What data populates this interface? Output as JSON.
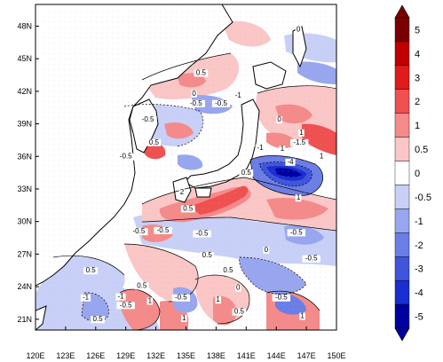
{
  "map": {
    "x_ticks": [
      "120E",
      "123E",
      "126E",
      "129E",
      "132E",
      "135E",
      "138E",
      "141E",
      "144E",
      "147E",
      "150E"
    ],
    "y_ticks": [
      "48N",
      "45N",
      "42N",
      "39N",
      "36N",
      "33N",
      "30N",
      "27N",
      "24N",
      "21N"
    ],
    "contour_labels": [
      {
        "text": "0",
        "lon": 146.2,
        "lat": 47.5
      },
      {
        "text": "0.5",
        "lon": 136.5,
        "lat": 43.5
      },
      {
        "text": "0",
        "lon": 135.8,
        "lat": 41.6
      },
      {
        "text": "-0.5",
        "lon": 131.2,
        "lat": 39.2
      },
      {
        "text": "0.5",
        "lon": 131.8,
        "lat": 37.1
      },
      {
        "text": "-0.5",
        "lon": 129.0,
        "lat": 35.8
      },
      {
        "text": "-0.5",
        "lon": 136.0,
        "lat": 40.7
      },
      {
        "text": "-0.5",
        "lon": 138.5,
        "lat": 40.7
      },
      {
        "text": "-1",
        "lon": 140.2,
        "lat": 41.4
      },
      {
        "text": "0",
        "lon": 144.3,
        "lat": 39.2
      },
      {
        "text": "1",
        "lon": 146.5,
        "lat": 38.0
      },
      {
        "text": "1",
        "lon": 144.6,
        "lat": 36.5
      },
      {
        "text": "-1.5",
        "lon": 146.3,
        "lat": 37.1
      },
      {
        "text": "-1",
        "lon": 142.4,
        "lat": 36.6
      },
      {
        "text": "-4",
        "lon": 145.4,
        "lat": 35.3
      },
      {
        "text": "0.5",
        "lon": 141.0,
        "lat": 34.3
      },
      {
        "text": "1",
        "lon": 148.5,
        "lat": 35.8
      },
      {
        "text": "2",
        "lon": 134.6,
        "lat": 32.5
      },
      {
        "text": "1",
        "lon": 146.2,
        "lat": 32.0
      },
      {
        "text": "0.5",
        "lon": 135.2,
        "lat": 31.0
      },
      {
        "text": "-0.5",
        "lon": 130.3,
        "lat": 28.9
      },
      {
        "text": "-0.5",
        "lon": 132.7,
        "lat": 29.0
      },
      {
        "text": "-0.5",
        "lon": 136.6,
        "lat": 28.7
      },
      {
        "text": "-0.5",
        "lon": 146.0,
        "lat": 28.8
      },
      {
        "text": "0",
        "lon": 143.0,
        "lat": 27.2
      },
      {
        "text": "0.5",
        "lon": 137.1,
        "lat": 26.7
      },
      {
        "text": "-0.5",
        "lon": 147.5,
        "lat": 26.4
      },
      {
        "text": "0.5",
        "lon": 125.5,
        "lat": 25.3
      },
      {
        "text": "0.5",
        "lon": 139.2,
        "lat": 25.3
      },
      {
        "text": "0.5",
        "lon": 130.6,
        "lat": 23.9
      },
      {
        "text": "0",
        "lon": 140.2,
        "lat": 23.7
      },
      {
        "text": "-1",
        "lon": 125.0,
        "lat": 22.8
      },
      {
        "text": "-1",
        "lon": 128.5,
        "lat": 22.9
      },
      {
        "text": "-0.5",
        "lon": 129.0,
        "lat": 22.1
      },
      {
        "text": "1",
        "lon": 131.4,
        "lat": 22.5
      },
      {
        "text": "-0.5",
        "lon": 134.5,
        "lat": 22.8
      },
      {
        "text": "1",
        "lon": 138.2,
        "lat": 22.6
      },
      {
        "text": "-0.5",
        "lon": 144.5,
        "lat": 22.8
      },
      {
        "text": "0.5",
        "lon": 126.2,
        "lat": 20.8
      },
      {
        "text": "1",
        "lon": 134.8,
        "lat": 20.9
      },
      {
        "text": "0.5",
        "lon": 140.3,
        "lat": 21.5
      },
      {
        "text": "1",
        "lon": 146.6,
        "lat": 21.1
      }
    ]
  },
  "colorbar": {
    "labels": [
      "5",
      "4",
      "3",
      "2",
      "1",
      "0.5",
      "0",
      "-0.5",
      "-1",
      "-2",
      "-3",
      "-4",
      "-5"
    ],
    "colors": [
      "#7a0000",
      "#c00000",
      "#e01b1b",
      "#f05050",
      "#f58a8a",
      "#fbc6c6",
      "#ffffff",
      "#c8d0f8",
      "#98a6ef",
      "#6b7de6",
      "#3f55dc",
      "#1a2fd0",
      "#0000a0"
    ]
  }
}
